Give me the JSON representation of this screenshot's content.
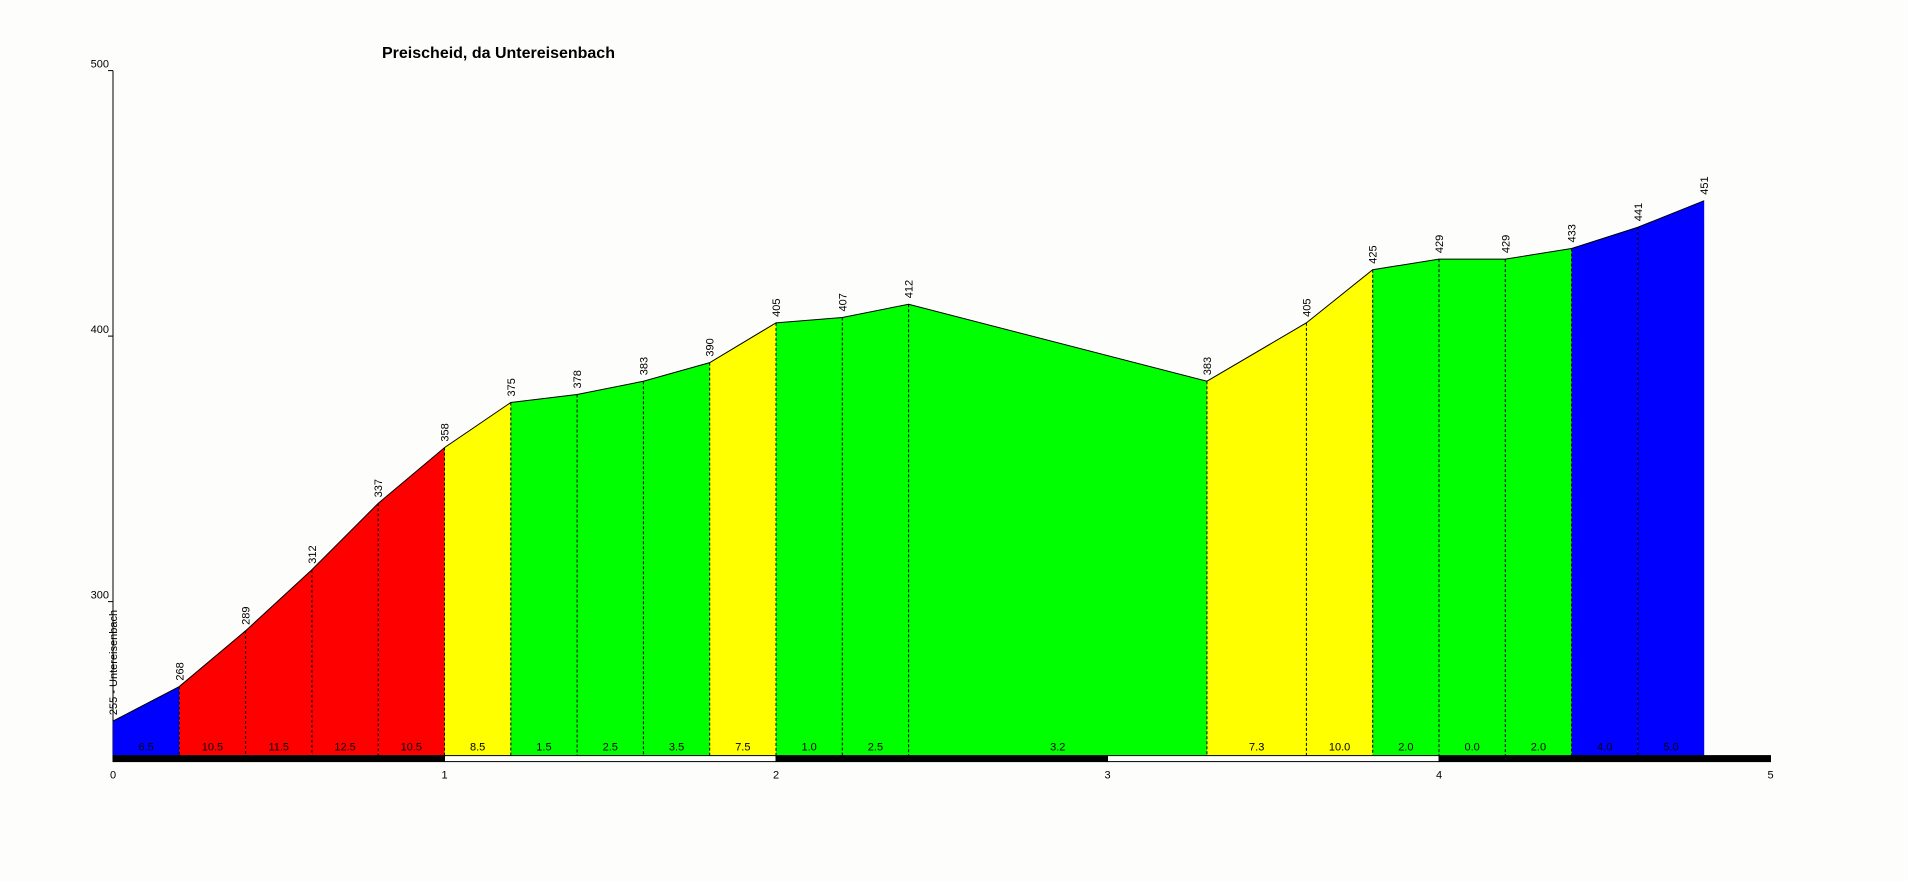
{
  "chart_data": {
    "type": "area",
    "title": "Preischeid, da Untereisenbach",
    "x": [
      0,
      0.2,
      0.4,
      0.6,
      0.8,
      1.0,
      1.2,
      1.4,
      1.6,
      1.8,
      2.0,
      2.2,
      2.4,
      3.3,
      3.6,
      3.8,
      4.0,
      4.2,
      4.4,
      4.6,
      4.8
    ],
    "values": [
      255,
      268,
      289,
      312,
      337,
      358,
      375,
      378,
      383,
      390,
      405,
      407,
      412,
      383,
      405,
      425,
      429,
      429,
      433,
      441,
      451
    ],
    "value_labels": [
      "255 - Untereisenbach",
      "268",
      "289",
      "312",
      "337",
      "358",
      "375",
      "378",
      "383",
      "390",
      "405",
      "407",
      "412",
      "383",
      "405",
      "425",
      "429",
      "429",
      "433",
      "441",
      "451"
    ],
    "gradients": [
      6.5,
      10.5,
      11.5,
      12.5,
      10.5,
      8.5,
      1.5,
      2.5,
      3.5,
      7.5,
      1.0,
      2.5,
      3.2,
      7.3,
      10.0,
      2.0,
      0.0,
      2.0,
      4.0,
      5.0
    ],
    "gradient_labels": [
      "6.5",
      "10.5",
      "11.5",
      "12.5",
      "10.5",
      "8.5",
      "1.5",
      "2.5",
      "3.5",
      "7.5",
      "1.0",
      "2.5",
      "3.2",
      "7.3",
      "10.0",
      "2.0",
      "0.0",
      "2.0",
      "4.0",
      "5.0"
    ],
    "segment_colors": [
      "#0000ff",
      "#ff0000",
      "#ff0000",
      "#ff0000",
      "#ff0000",
      "#ffff00",
      "#00ff00",
      "#00ff00",
      "#00ff00",
      "#ffff00",
      "#00ff00",
      "#00ff00",
      "#00ff00",
      "#ffff00",
      "#ffff00",
      "#00ff00",
      "#00ff00",
      "#00ff00",
      "#0000ff",
      "#0000ff"
    ],
    "xlim": [
      0,
      5
    ],
    "xticks": [
      0,
      1,
      2,
      3,
      4,
      5
    ],
    "ylim": [
      242,
      500
    ],
    "yticks": [
      300,
      400,
      500
    ]
  }
}
